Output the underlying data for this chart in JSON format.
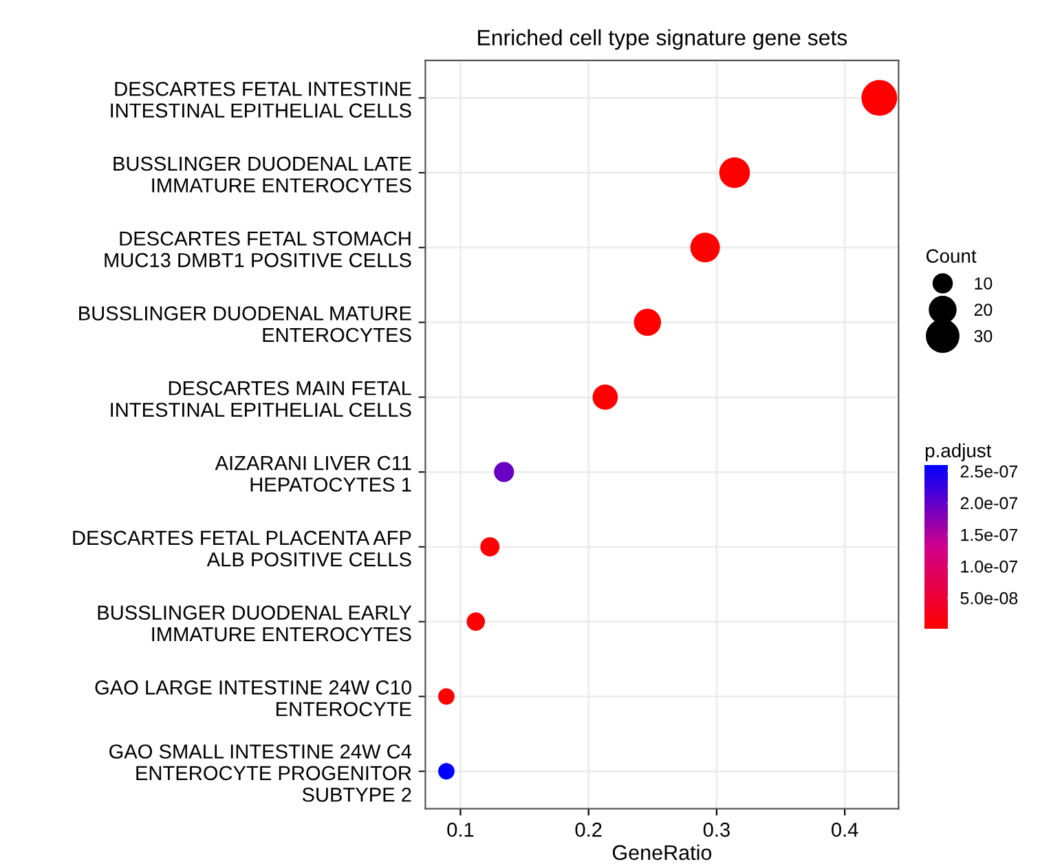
{
  "chart_data": {
    "type": "scatter",
    "orientation": "horizontal",
    "title": "Enriched cell type signature gene sets",
    "xlabel": "GeneRatio",
    "legend_title": "Count",
    "clabel": "p.adjust",
    "categories": [
      "DESCARTES FETAL INTESTINE\nINTESTINAL EPITHELIAL CELLS",
      "BUSSLINGER DUODENAL LATE\nIMMATURE ENTEROCYTES",
      "DESCARTES FETAL STOMACH\nMUC13 DMBT1 POSITIVE CELLS",
      "BUSSLINGER DUODENAL MATURE\nENTEROCYTES",
      "DESCARTES MAIN FETAL\nINTESTINAL EPITHELIAL CELLS",
      "AIZARANI LIVER C11\nHEPATOCYTES 1",
      "DESCARTES FETAL PLACENTA AFP\nALB POSITIVE CELLS",
      "BUSSLINGER DUODENAL EARLY\nIMMATURE ENTEROCYTES",
      "GAO LARGE INTESTINE 24W C10\nENTEROCYTE",
      "GAO SMALL INTESTINE 24W C4\nENTEROCYTE PROGENITOR\nSUBTYPE 2"
    ],
    "values": [
      0.427,
      0.314,
      0.291,
      0.246,
      0.213,
      0.134,
      0.123,
      0.112,
      0.089,
      0.089
    ],
    "sizes": [
      38,
      28,
      26,
      22,
      19,
      12,
      11,
      10,
      8,
      8
    ],
    "size_legend": [
      10,
      20,
      30
    ],
    "cvalues": [
      1e-09,
      1e-09,
      1e-09,
      2e-09,
      3e-09,
      1.95e-07,
      5e-09,
      4e-09,
      6e-09,
      2.6e-07
    ],
    "clim": [
      1e-09,
      2.6e-07
    ],
    "cticks": [
      {
        "value": 5e-08,
        "label": "5.0e-08"
      },
      {
        "value": 1e-07,
        "label": "1.0e-07"
      },
      {
        "value": 1.5e-07,
        "label": "1.5e-07"
      },
      {
        "value": 2e-07,
        "label": "2.0e-07"
      },
      {
        "value": 2.5e-07,
        "label": "2.5e-07"
      }
    ],
    "xlim": [
      0.0726,
      0.442
    ],
    "xticks": [
      0.1,
      0.2,
      0.3,
      0.4
    ],
    "grid": true,
    "marker": "circle"
  }
}
